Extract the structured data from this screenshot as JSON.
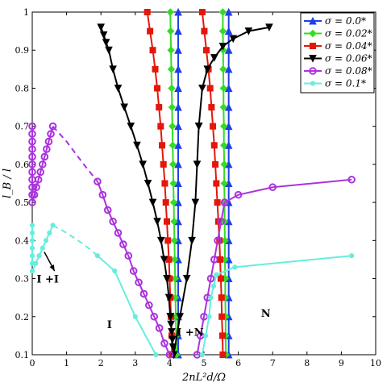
{
  "chart_data": {
    "type": "line",
    "xlabel": "2nL²d/Ω",
    "ylabel": "l_B / l",
    "xlim": [
      0,
      10
    ],
    "ylim": [
      0.1,
      1.0
    ],
    "xticks": [
      "0",
      "1",
      "2",
      "3",
      "4",
      "5",
      "6",
      "7",
      "8",
      "9",
      "10"
    ],
    "yticks": [
      "0.1",
      "0.2",
      "0.3",
      "0.4",
      "0.5",
      "0.6",
      "0.7",
      "0.8",
      "0.9",
      "1"
    ],
    "grid": false,
    "legend_position": "top-right",
    "region_labels": [
      {
        "text": "I +I",
        "x": 0.45,
        "y": 0.29
      },
      {
        "text": "I",
        "x": 2.25,
        "y": 0.17
      },
      {
        "text": "I +N",
        "x": 4.6,
        "y": 0.15
      },
      {
        "text": "N",
        "x": 6.8,
        "y": 0.2
      }
    ],
    "series": [
      {
        "name": "σ = 0.0*",
        "color": "#1f3fe6",
        "marker": "triangle-up",
        "lines": [
          {
            "x": [
              4.25,
              4.25,
              4.25,
              4.25,
              4.25,
              4.25,
              4.25,
              4.25,
              4.25,
              4.25,
              4.25,
              4.25,
              4.25,
              4.25,
              4.25,
              4.25,
              4.25,
              4.25,
              4.25
            ],
            "y": [
              1.0,
              0.95,
              0.9,
              0.85,
              0.8,
              0.75,
              0.7,
              0.65,
              0.6,
              0.55,
              0.5,
              0.45,
              0.4,
              0.35,
              0.3,
              0.25,
              0.2,
              0.15,
              0.1
            ]
          },
          {
            "x": [
              5.72,
              5.72,
              5.72,
              5.72,
              5.72,
              5.72,
              5.72,
              5.72,
              5.72,
              5.72,
              5.72,
              5.72,
              5.72,
              5.72,
              5.72,
              5.72,
              5.72,
              5.72,
              5.72
            ],
            "y": [
              1.0,
              0.95,
              0.9,
              0.85,
              0.8,
              0.75,
              0.7,
              0.65,
              0.6,
              0.55,
              0.5,
              0.45,
              0.4,
              0.35,
              0.3,
              0.25,
              0.2,
              0.15,
              0.1
            ]
          }
        ]
      },
      {
        "name": "σ = 0.02*",
        "color": "#33dd22",
        "marker": "diamond",
        "lines": [
          {
            "x": [
              4.02,
              4.03,
              4.04,
              4.05,
              4.06,
              4.07,
              4.08,
              4.09,
              4.1,
              4.11,
              4.12,
              4.13,
              4.14,
              4.15,
              4.16,
              4.17,
              4.18,
              4.19,
              4.2
            ],
            "y": [
              1.0,
              0.95,
              0.9,
              0.85,
              0.8,
              0.75,
              0.7,
              0.65,
              0.6,
              0.55,
              0.5,
              0.45,
              0.4,
              0.35,
              0.3,
              0.25,
              0.2,
              0.15,
              0.1
            ]
          },
          {
            "x": [
              5.55,
              5.55,
              5.56,
              5.56,
              5.57,
              5.57,
              5.58,
              5.58,
              5.59,
              5.59,
              5.6,
              5.6,
              5.61,
              5.61,
              5.62,
              5.62,
              5.63,
              5.63,
              5.64
            ],
            "y": [
              1.0,
              0.95,
              0.9,
              0.85,
              0.8,
              0.75,
              0.7,
              0.65,
              0.6,
              0.55,
              0.5,
              0.45,
              0.4,
              0.35,
              0.3,
              0.25,
              0.2,
              0.15,
              0.1
            ]
          }
        ]
      },
      {
        "name": "σ = 0.04*",
        "color": "#e3170a",
        "marker": "square",
        "lines": [
          {
            "x": [
              3.35,
              3.43,
              3.51,
              3.58,
              3.64,
              3.69,
              3.74,
              3.78,
              3.82,
              3.86,
              3.89,
              3.92,
              3.95,
              3.98,
              4.0,
              4.02,
              4.04,
              4.06,
              4.07
            ],
            "y": [
              1.0,
              0.95,
              0.9,
              0.85,
              0.8,
              0.75,
              0.7,
              0.65,
              0.6,
              0.55,
              0.5,
              0.45,
              0.4,
              0.35,
              0.3,
              0.25,
              0.2,
              0.15,
              0.1
            ]
          },
          {
            "x": [
              4.95,
              5.01,
              5.07,
              5.13,
              5.18,
              5.22,
              5.26,
              5.3,
              5.33,
              5.36,
              5.39,
              5.42,
              5.45,
              5.47,
              5.49,
              5.51,
              5.52,
              5.54,
              5.55
            ],
            "y": [
              1.0,
              0.95,
              0.9,
              0.85,
              0.8,
              0.75,
              0.7,
              0.65,
              0.6,
              0.55,
              0.5,
              0.45,
              0.4,
              0.35,
              0.3,
              0.25,
              0.2,
              0.15,
              0.1
            ]
          }
        ]
      },
      {
        "name": "σ = 0.06*",
        "color": "#000000",
        "marker": "triangle-down",
        "lines": [
          {
            "x": [
              2.0,
              2.08,
              2.15,
              2.23,
              2.35,
              2.5,
              2.68,
              2.87,
              3.05,
              3.22,
              3.37,
              3.51,
              3.64,
              3.75,
              3.84,
              3.92,
              3.98,
              4.02
            ],
            "y": [
              0.96,
              0.94,
              0.92,
              0.9,
              0.85,
              0.8,
              0.75,
              0.7,
              0.65,
              0.6,
              0.55,
              0.5,
              0.45,
              0.4,
              0.35,
              0.3,
              0.25,
              0.2
            ]
          },
          {
            "x": [
              4.02,
              4.04,
              4.06,
              4.08,
              4.1,
              4.12
            ],
            "y": [
              0.2,
              0.18,
              0.16,
              0.14,
              0.12,
              0.1
            ]
          },
          {
            "x": [
              4.12,
              4.3,
              4.5,
              4.65,
              4.75,
              4.8,
              4.85
            ],
            "y": [
              0.1,
              0.2,
              0.3,
              0.4,
              0.5,
              0.6,
              0.7
            ]
          },
          {
            "x": [
              4.85,
              4.95,
              5.1,
              5.3,
              5.55,
              5.85,
              6.3,
              6.9
            ],
            "y": [
              0.7,
              0.8,
              0.85,
              0.88,
              0.91,
              0.93,
              0.95,
              0.96
            ]
          }
        ]
      },
      {
        "name": "σ = 0.08*",
        "color": "#aa33dd",
        "marker": "circle",
        "lines": [
          {
            "x": [
              0.0,
              0.0,
              0.0,
              0.0,
              0.0,
              0.0,
              0.0,
              0.0,
              0.0,
              0.0
            ],
            "y": [
              0.7,
              0.68,
              0.66,
              0.64,
              0.62,
              0.6,
              0.58,
              0.56,
              0.54,
              0.52
            ]
          },
          {
            "x": [
              0.0,
              0.06,
              0.12,
              0.18,
              0.24,
              0.3,
              0.36,
              0.42,
              0.48,
              0.54,
              0.6
            ],
            "y": [
              0.5,
              0.52,
              0.54,
              0.56,
              0.58,
              0.6,
              0.62,
              0.64,
              0.66,
              0.68,
              0.7
            ]
          },
          {
            "x": [
              1.9,
              2.05,
              2.2,
              2.35,
              2.5,
              2.65,
              2.8,
              2.95,
              3.1,
              3.25,
              3.4,
              3.55,
              3.7,
              3.85,
              4.0
            ],
            "y": [
              0.555,
              0.52,
              0.48,
              0.45,
              0.42,
              0.39,
              0.36,
              0.32,
              0.29,
              0.26,
              0.23,
              0.2,
              0.17,
              0.13,
              0.1
            ]
          },
          {
            "x": [
              4.8,
              4.9,
              5.0,
              5.1,
              5.2,
              5.3,
              5.4,
              5.5,
              5.6
            ],
            "y": [
              0.1,
              0.15,
              0.2,
              0.25,
              0.3,
              0.35,
              0.4,
              0.45,
              0.5
            ]
          },
          {
            "x": [
              5.6,
              6.0,
              7.0,
              9.3
            ],
            "y": [
              0.5,
              0.52,
              0.54,
              0.56
            ]
          }
        ]
      },
      {
        "name": "σ = 0.1*",
        "color": "#66eedd",
        "marker": "circle-small",
        "lines": [
          {
            "x": [
              0.0,
              0.0,
              0.0,
              0.0,
              0.0,
              0.0
            ],
            "y": [
              0.44,
              0.42,
              0.4,
              0.38,
              0.36,
              0.34
            ]
          },
          {
            "x": [
              0.0,
              0.1,
              0.2,
              0.3,
              0.4,
              0.5,
              0.6
            ],
            "y": [
              0.32,
              0.34,
              0.36,
              0.38,
              0.4,
              0.42,
              0.44
            ]
          },
          {
            "x": [
              1.9,
              2.4,
              3.0,
              3.6
            ],
            "y": [
              0.36,
              0.32,
              0.2,
              0.1
            ]
          },
          {
            "x": [
              4.95,
              5.05,
              5.15,
              5.2,
              5.28,
              5.36
            ],
            "y": [
              0.1,
              0.15,
              0.2,
              0.25,
              0.28,
              0.31
            ]
          },
          {
            "x": [
              5.36,
              5.9,
              9.3
            ],
            "y": [
              0.31,
              0.33,
              0.36
            ]
          }
        ]
      }
    ],
    "dashed_connectors": [
      {
        "series": "σ = 0.08*",
        "x": [
          0.6,
          1.0,
          1.5,
          1.9
        ],
        "y": [
          0.7,
          0.66,
          0.6,
          0.555
        ]
      },
      {
        "series": "σ = 0.1*",
        "x": [
          0.6,
          1.0,
          1.5,
          1.9
        ],
        "y": [
          0.44,
          0.42,
          0.39,
          0.36
        ]
      }
    ],
    "arrow": {
      "from": [
        0.35,
        0.37
      ],
      "to": [
        0.65,
        0.32
      ]
    }
  }
}
